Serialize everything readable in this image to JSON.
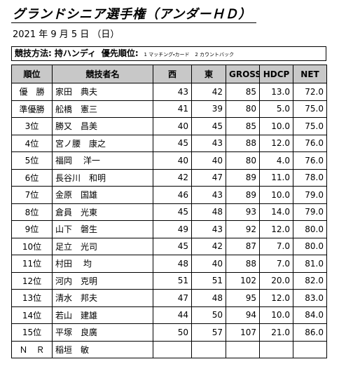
{
  "header": {
    "title": "グランドシニア選手権（アンダーＨＤ）",
    "date": "2021 年 9 月 5 日 （日）"
  },
  "method": {
    "label": "競技方法:",
    "value": "持ハンディ",
    "priority_label": "優先順位:",
    "priority_items": [
      "1 マッチング・カード",
      "2 カウントバック"
    ]
  },
  "table": {
    "columns": [
      "順位",
      "競技者名",
      "西",
      "東",
      "GROSS",
      "HDCP",
      "NET"
    ],
    "rows": [
      [
        "優　勝",
        "家田　典夫",
        "43",
        "42",
        "85",
        "13.0",
        "72.0"
      ],
      [
        "準優勝",
        "舩橋　憲三",
        "41",
        "39",
        "80",
        "5.0",
        "75.0"
      ],
      [
        "3位",
        "勝又　昌美",
        "40",
        "45",
        "85",
        "10.0",
        "75.0"
      ],
      [
        "4位",
        "宮ノ腰　康之",
        "45",
        "43",
        "88",
        "12.0",
        "76.0"
      ],
      [
        "5位",
        "福岡　 洋一",
        "40",
        "40",
        "80",
        "4.0",
        "76.0"
      ],
      [
        "6位",
        "長谷川　和明",
        "42",
        "47",
        "89",
        "11.0",
        "78.0"
      ],
      [
        "7位",
        "金原　国雄",
        "46",
        "43",
        "89",
        "10.0",
        "79.0"
      ],
      [
        "8位",
        "倉員　光東",
        "45",
        "48",
        "93",
        "14.0",
        "79.0"
      ],
      [
        "9位",
        "山下　磐生",
        "49",
        "43",
        "92",
        "12.0",
        "80.0"
      ],
      [
        "10位",
        "足立　光司",
        "45",
        "42",
        "87",
        "7.0",
        "80.0"
      ],
      [
        "11位",
        "村田　 均",
        "48",
        "40",
        "88",
        "7.0",
        "81.0"
      ],
      [
        "12位",
        "河内　克明",
        "51",
        "51",
        "102",
        "20.0",
        "82.0"
      ],
      [
        "13位",
        "清水　邦夫",
        "47",
        "48",
        "95",
        "12.0",
        "83.0"
      ],
      [
        "14位",
        "若山　建雄",
        "44",
        "50",
        "94",
        "10.0",
        "84.0"
      ],
      [
        "15位",
        "平塚　良廣",
        "50",
        "57",
        "107",
        "21.0",
        "86.0"
      ],
      [
        "Ｎ　Ｒ",
        "稲垣　敏"
      ]
    ]
  }
}
